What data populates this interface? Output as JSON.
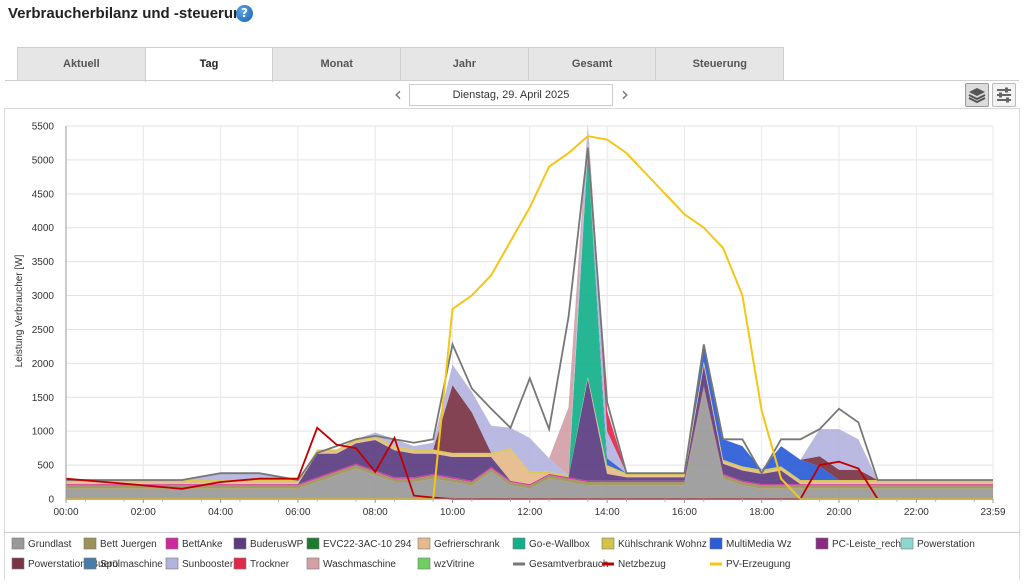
{
  "header": {
    "title": "Verbraucherbilanz und -steuerung",
    "help_icon": "question-circle-icon"
  },
  "tabs": [
    {
      "label": "Aktuell",
      "active": false
    },
    {
      "label": "Tag",
      "active": true
    },
    {
      "label": "Monat",
      "active": false
    },
    {
      "label": "Jahr",
      "active": false
    },
    {
      "label": "Gesamt",
      "active": false
    },
    {
      "label": "Steuerung",
      "active": false
    }
  ],
  "date_nav": {
    "prev_icon": "chevron-left-icon",
    "date": "Dienstag, 29. April 2025",
    "next_icon": "chevron-right-icon"
  },
  "view_toggle": {
    "stacked_icon": "layers-icon",
    "list_icon": "sliders-icon",
    "active": "stacked"
  },
  "chart_data": {
    "type": "area",
    "title": "",
    "ylabel": "Leistung Verbraucher [W]",
    "xlabel": "",
    "ylim": [
      0,
      5500
    ],
    "yticks": [
      0,
      500,
      1000,
      1500,
      2000,
      2500,
      3000,
      3500,
      4000,
      4500,
      5000,
      5500
    ],
    "xlim": [
      0,
      1439
    ],
    "xticks": [
      "00:00",
      "02:00",
      "04:00",
      "06:00",
      "08:00",
      "10:00",
      "12:00",
      "14:00",
      "16:00",
      "18:00",
      "20:00",
      "22:00",
      "23:59"
    ],
    "grid": true,
    "legend_position": "bottom",
    "x": [
      0,
      60,
      120,
      180,
      240,
      300,
      360,
      390,
      420,
      450,
      480,
      510,
      540,
      570,
      600,
      630,
      660,
      690,
      720,
      750,
      780,
      810,
      840,
      870,
      900,
      930,
      960,
      990,
      1020,
      1050,
      1080,
      1110,
      1140,
      1170,
      1200,
      1230,
      1260,
      1290,
      1320,
      1350,
      1380,
      1439
    ],
    "series": [
      {
        "name": "Grundlast",
        "color": "#999999",
        "values": [
          150,
          150,
          150,
          150,
          150,
          150,
          150,
          250,
          350,
          450,
          350,
          250,
          250,
          300,
          250,
          200,
          400,
          200,
          150,
          300,
          250,
          200,
          200,
          200,
          200,
          200,
          200,
          1600,
          300,
          200,
          150,
          150,
          150,
          150,
          150,
          150,
          150,
          150,
          150,
          150,
          150,
          150
        ]
      },
      {
        "name": "Bett Juergen",
        "color": "#9c9158",
        "values": [
          50,
          50,
          50,
          50,
          50,
          50,
          50,
          50,
          50,
          50,
          50,
          50,
          50,
          50,
          50,
          50,
          50,
          50,
          50,
          50,
          50,
          50,
          50,
          50,
          50,
          50,
          50,
          50,
          50,
          50,
          50,
          50,
          50,
          50,
          50,
          50,
          50,
          50,
          50,
          50,
          50,
          50
        ]
      },
      {
        "name": "BettAnke",
        "color": "#cc2a9c",
        "values": [
          20,
          20,
          20,
          20,
          20,
          20,
          20,
          20,
          20,
          20,
          20,
          20,
          20,
          20,
          20,
          20,
          20,
          20,
          20,
          20,
          20,
          20,
          20,
          20,
          20,
          20,
          20,
          20,
          20,
          20,
          20,
          20,
          20,
          20,
          20,
          20,
          20,
          20,
          20,
          20,
          20,
          20
        ]
      },
      {
        "name": "BuderusWP",
        "color": "#5b3c80",
        "values": [
          0,
          0,
          0,
          0,
          0,
          0,
          0,
          350,
          250,
          300,
          450,
          400,
          350,
          300,
          300,
          350,
          150,
          0,
          0,
          0,
          0,
          1500,
          100,
          50,
          50,
          50,
          50,
          300,
          150,
          150,
          150,
          200,
          0,
          0,
          0,
          0,
          0,
          0,
          0,
          0,
          0,
          0
        ]
      },
      {
        "name": "EVC22-3AC-10 294",
        "color": "#1c7a2c",
        "values": [
          0,
          0,
          0,
          0,
          0,
          0,
          0,
          0,
          0,
          0,
          0,
          0,
          0,
          0,
          0,
          0,
          0,
          0,
          0,
          0,
          0,
          0,
          0,
          0,
          0,
          0,
          0,
          0,
          0,
          0,
          0,
          0,
          0,
          0,
          0,
          0,
          0,
          0,
          0,
          0,
          0,
          0
        ]
      },
      {
        "name": "Gefrierschrank",
        "color": "#e6b98a",
        "values": [
          30,
          30,
          30,
          30,
          30,
          30,
          30,
          30,
          30,
          30,
          30,
          30,
          30,
          30,
          30,
          30,
          30,
          450,
          150,
          0,
          0,
          30,
          100,
          30,
          30,
          30,
          30,
          30,
          30,
          30,
          30,
          30,
          30,
          30,
          30,
          30,
          30,
          30,
          30,
          30,
          30,
          30
        ]
      },
      {
        "name": "Go-e-Wallbox",
        "color": "#14b08a",
        "values": [
          0,
          0,
          0,
          0,
          0,
          0,
          0,
          0,
          0,
          0,
          0,
          0,
          0,
          0,
          0,
          0,
          0,
          0,
          0,
          0,
          0,
          3300,
          0,
          0,
          0,
          0,
          0,
          0,
          0,
          0,
          0,
          0,
          0,
          0,
          0,
          0,
          0,
          0,
          0,
          0,
          0,
          0
        ]
      },
      {
        "name": "Kühlschrank Wohnz",
        "color": "#d6c24a",
        "values": [
          30,
          30,
          30,
          30,
          30,
          30,
          30,
          30,
          30,
          30,
          30,
          30,
          30,
          30,
          30,
          30,
          30,
          30,
          30,
          30,
          30,
          30,
          30,
          30,
          30,
          30,
          30,
          30,
          30,
          30,
          30,
          30,
          30,
          30,
          30,
          30,
          30,
          30,
          30,
          30,
          30,
          30
        ]
      },
      {
        "name": "MultiMedia Wz",
        "color": "#2a5cd6",
        "values": [
          0,
          0,
          0,
          0,
          0,
          0,
          0,
          0,
          0,
          0,
          0,
          0,
          0,
          0,
          0,
          0,
          0,
          0,
          0,
          0,
          0,
          0,
          100,
          0,
          0,
          0,
          0,
          200,
          300,
          300,
          0,
          300,
          300,
          200,
          0,
          0,
          0,
          0,
          0,
          0,
          0,
          0
        ]
      },
      {
        "name": "PC-Leiste_rechts",
        "color": "#8a2a80",
        "values": [
          0,
          0,
          0,
          0,
          0,
          0,
          0,
          0,
          0,
          0,
          0,
          0,
          0,
          0,
          0,
          0,
          0,
          0,
          0,
          0,
          0,
          0,
          0,
          0,
          0,
          0,
          0,
          0,
          0,
          0,
          0,
          0,
          0,
          0,
          0,
          0,
          0,
          0,
          0,
          0,
          0,
          0
        ]
      },
      {
        "name": "Powerstation",
        "color": "#8ed6cf",
        "values": [
          0,
          0,
          0,
          0,
          0,
          0,
          0,
          0,
          0,
          0,
          0,
          0,
          0,
          0,
          0,
          0,
          0,
          0,
          0,
          0,
          0,
          0,
          0,
          0,
          0,
          0,
          0,
          0,
          0,
          0,
          0,
          0,
          0,
          0,
          0,
          0,
          0,
          0,
          0,
          0,
          0,
          0
        ]
      },
      {
        "name": "Powerstation_Buero",
        "color": "#7a3344",
        "values": [
          0,
          0,
          0,
          0,
          0,
          0,
          0,
          0,
          0,
          0,
          0,
          0,
          0,
          0,
          1000,
          600,
          0,
          0,
          0,
          0,
          0,
          0,
          0,
          0,
          0,
          0,
          0,
          0,
          0,
          0,
          0,
          0,
          0,
          150,
          150,
          150,
          0,
          0,
          0,
          0,
          0,
          0
        ]
      },
      {
        "name": "Spülmaschine",
        "color": "#4a7ca8",
        "values": [
          0,
          0,
          0,
          0,
          0,
          0,
          0,
          0,
          0,
          0,
          0,
          0,
          0,
          0,
          0,
          0,
          0,
          0,
          0,
          0,
          0,
          0,
          0,
          0,
          0,
          0,
          0,
          0,
          0,
          0,
          0,
          0,
          0,
          0,
          0,
          0,
          0,
          0,
          0,
          0,
          0,
          0
        ]
      },
      {
        "name": "Sunbooster",
        "color": "#b3b3e0",
        "values": [
          0,
          0,
          0,
          0,
          100,
          100,
          0,
          0,
          0,
          0,
          50,
          100,
          50,
          100,
          300,
          300,
          400,
          300,
          500,
          200,
          0,
          400,
          400,
          0,
          0,
          0,
          0,
          0,
          0,
          0,
          0,
          0,
          0,
          400,
          600,
          450,
          0,
          0,
          0,
          0,
          0,
          0
        ]
      },
      {
        "name": "Trockner",
        "color": "#e0294a",
        "values": [
          0,
          0,
          0,
          0,
          0,
          0,
          0,
          0,
          0,
          0,
          0,
          0,
          0,
          0,
          0,
          0,
          0,
          0,
          0,
          0,
          0,
          0,
          300,
          0,
          0,
          0,
          0,
          0,
          0,
          0,
          0,
          0,
          0,
          0,
          0,
          0,
          0,
          0,
          0,
          0,
          0,
          0
        ]
      },
      {
        "name": "Waschmaschine",
        "color": "#d4a0a8",
        "values": [
          0,
          0,
          0,
          0,
          0,
          0,
          0,
          0,
          0,
          0,
          0,
          0,
          0,
          0,
          0,
          0,
          0,
          0,
          0,
          0,
          1000,
          0,
          0,
          0,
          0,
          0,
          0,
          0,
          0,
          0,
          0,
          0,
          0,
          0,
          0,
          0,
          0,
          0,
          0,
          0,
          0,
          0
        ]
      },
      {
        "name": "wzVitrine",
        "color": "#6fcf5f",
        "values": [
          0,
          0,
          0,
          0,
          0,
          0,
          0,
          0,
          0,
          0,
          0,
          0,
          0,
          0,
          0,
          0,
          0,
          0,
          0,
          0,
          0,
          0,
          0,
          0,
          0,
          0,
          0,
          0,
          0,
          0,
          0,
          0,
          0,
          0,
          0,
          0,
          0,
          0,
          0,
          0,
          0,
          0
        ]
      }
    ],
    "lines": [
      {
        "name": "Gesamtverbrauch",
        "color": "#777777",
        "values": [
          280,
          280,
          280,
          280,
          380,
          380,
          280,
          680,
          780,
          880,
          930,
          880,
          830,
          880,
          2280,
          1630,
          1330,
          1050,
          1780,
          1030,
          2680,
          5180,
          1430,
          380,
          380,
          380,
          380,
          2280,
          880,
          880,
          380,
          880,
          880,
          1030,
          1330,
          1130,
          280,
          280,
          280,
          280,
          280,
          280
        ]
      },
      {
        "name": "Netzbezug",
        "color": "#c00000",
        "values": [
          300,
          250,
          200,
          150,
          250,
          300,
          300,
          1050,
          800,
          750,
          400,
          900,
          50,
          20,
          0,
          0,
          0,
          0,
          0,
          0,
          0,
          0,
          0,
          0,
          0,
          0,
          0,
          0,
          0,
          0,
          0,
          0,
          0,
          500,
          550,
          450,
          0,
          0,
          0,
          0,
          0,
          0
        ]
      },
      {
        "name": "PV-Erzeugung",
        "color": "#f5c518",
        "values": [
          0,
          0,
          0,
          0,
          0,
          0,
          0,
          0,
          0,
          0,
          0,
          0,
          0,
          0,
          2800,
          3000,
          3300,
          3800,
          4300,
          4900,
          5100,
          5350,
          5300,
          5100,
          4800,
          4500,
          4200,
          4000,
          3700,
          3000,
          1300,
          300,
          0,
          0,
          0,
          0,
          0,
          0,
          0,
          0,
          0,
          0
        ]
      }
    ]
  }
}
